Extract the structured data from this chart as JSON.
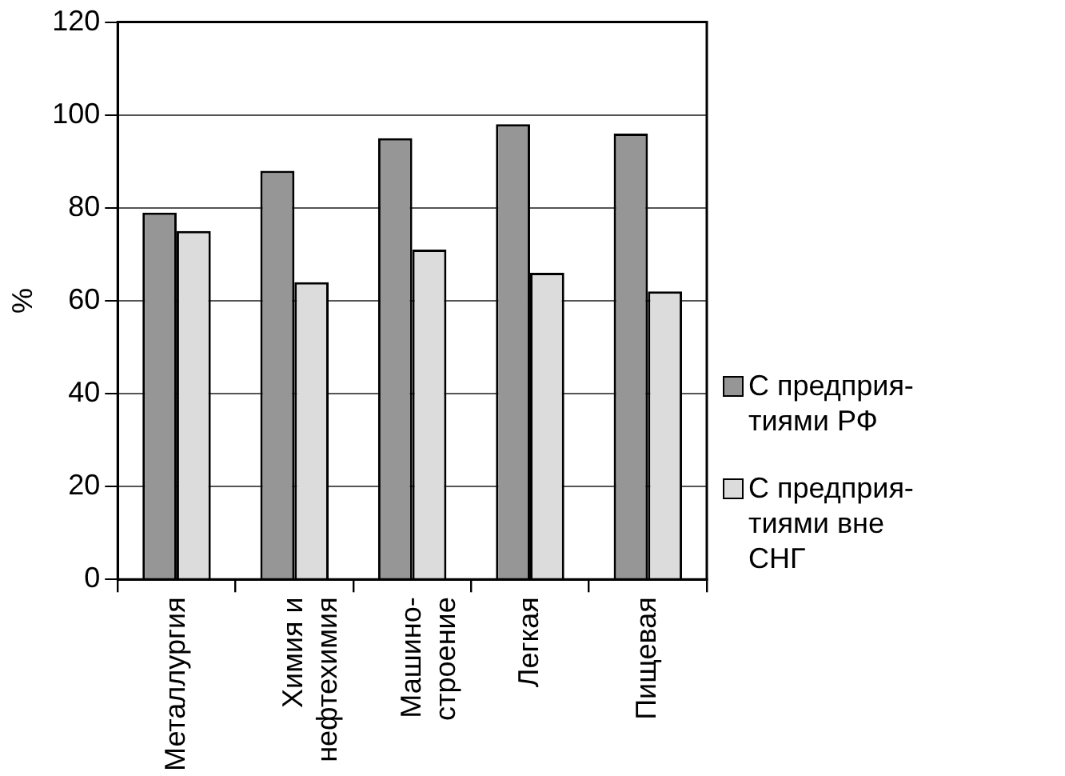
{
  "chart_data": {
    "type": "bar",
    "ylabel": "%",
    "categories": [
      "Металлургия",
      "Химия и\nнефтехимия",
      "Машино-\nстроение",
      "Легкая",
      "Пищевая"
    ],
    "series": [
      {
        "name": "С предприя-\nтиями РФ",
        "color": "#969696",
        "values": [
          79,
          88,
          95,
          98,
          96
        ]
      },
      {
        "name": "С предприя-\nтиями вне\nСНГ",
        "color": "#dcdcdc",
        "values": [
          75,
          64,
          71,
          66,
          62
        ]
      }
    ],
    "ylim": [
      0,
      120
    ],
    "yticks": [
      0,
      20,
      40,
      60,
      80,
      100,
      120
    ],
    "grid": "y",
    "legend": "right"
  }
}
